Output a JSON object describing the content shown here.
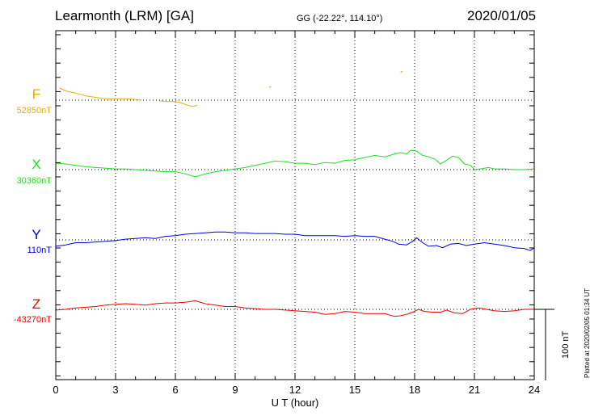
{
  "header": {
    "station": "Learmonth (LRM)  [GA]",
    "coords": "GG (-22.22°, 114.10°)",
    "date": "2020/01/05"
  },
  "footer": {
    "plotted": "Plotted at 2020/02/05 01:34 UT",
    "scale_label": "100 nT"
  },
  "colors": {
    "F": "#f2a900",
    "X": "#22dd22",
    "Y": "#0000dd",
    "Z": "#ee0000"
  },
  "chart_data": {
    "type": "line",
    "xlabel": "U T (hour)",
    "xlim": [
      0,
      24
    ],
    "xticks": [
      0,
      3,
      6,
      9,
      12,
      15,
      18,
      21,
      24
    ],
    "grid": true,
    "scale_bar_nT": 100,
    "series": [
      {
        "name": "F",
        "baseline_label": "52850nT",
        "baseline": 52850,
        "segments": [
          [
            [
              0.2,
              52867
            ],
            [
              0.5,
              52863
            ],
            [
              1.0,
              52860
            ],
            [
              1.5,
              52856
            ],
            [
              2.0,
              52854
            ],
            [
              2.5,
              52852
            ],
            [
              3.0,
              52852
            ],
            [
              3.5,
              52852
            ],
            [
              4.0,
              52851
            ],
            [
              4.3,
              52850
            ]
          ],
          [
            [
              5.2,
              52849
            ],
            [
              5.6,
              52848
            ],
            [
              6.0,
              52848
            ],
            [
              6.3,
              52846
            ],
            [
              6.6,
              52843
            ],
            [
              6.9,
              52841
            ],
            [
              7.1,
              52843
            ]
          ],
          [
            [
              10.7,
              52868
            ],
            [
              10.8,
              52869
            ]
          ],
          [
            [
              17.3,
              52889
            ],
            [
              17.4,
              52891
            ]
          ]
        ]
      },
      {
        "name": "X",
        "baseline_label": "30360nT",
        "baseline": 30360,
        "values": [
          [
            0,
            30369
          ],
          [
            0.5,
            30368
          ],
          [
            1,
            30366
          ],
          [
            1.5,
            30364
          ],
          [
            2,
            30363
          ],
          [
            2.5,
            30362
          ],
          [
            3,
            30361
          ],
          [
            3.5,
            30361
          ],
          [
            4,
            30360
          ],
          [
            4.5,
            30359
          ],
          [
            5,
            30358
          ],
          [
            5.5,
            30357
          ],
          [
            6,
            30357
          ],
          [
            6.5,
            30354
          ],
          [
            7,
            30350
          ],
          [
            7.5,
            30354
          ],
          [
            8,
            30357
          ],
          [
            8.5,
            30359
          ],
          [
            9,
            30361
          ],
          [
            9.5,
            30363
          ],
          [
            10,
            30366
          ],
          [
            10.5,
            30369
          ],
          [
            11,
            30372
          ],
          [
            11.5,
            30371
          ],
          [
            12,
            30369
          ],
          [
            12.5,
            30369
          ],
          [
            13,
            30367
          ],
          [
            13.5,
            30370
          ],
          [
            14,
            30369
          ],
          [
            14.5,
            30373
          ],
          [
            15,
            30374
          ],
          [
            15.5,
            30377
          ],
          [
            16,
            30380
          ],
          [
            16.5,
            30378
          ],
          [
            17,
            30382
          ],
          [
            17.3,
            30384
          ],
          [
            17.6,
            30382
          ],
          [
            17.8,
            30387
          ],
          [
            18.1,
            30386
          ],
          [
            18.4,
            30380
          ],
          [
            18.7,
            30378
          ],
          [
            19,
            30375
          ],
          [
            19.3,
            30368
          ],
          [
            19.6,
            30373
          ],
          [
            19.9,
            30379
          ],
          [
            20.2,
            30377
          ],
          [
            20.5,
            30368
          ],
          [
            20.8,
            30366
          ],
          [
            21,
            30360
          ],
          [
            21.3,
            30361
          ],
          [
            21.7,
            30363
          ],
          [
            22,
            30361
          ],
          [
            22.5,
            30361
          ],
          [
            23,
            30360
          ],
          [
            23.5,
            30360
          ],
          [
            24,
            30361
          ]
        ]
      },
      {
        "name": "Y",
        "baseline_label": "110nT",
        "baseline": 110,
        "values": [
          [
            0,
            101
          ],
          [
            0.5,
            103
          ],
          [
            1,
            106
          ],
          [
            1.5,
            106
          ],
          [
            2,
            107
          ],
          [
            2.5,
            108
          ],
          [
            3,
            109
          ],
          [
            3.5,
            111
          ],
          [
            4,
            112
          ],
          [
            4.5,
            113
          ],
          [
            5,
            112
          ],
          [
            5.5,
            115
          ],
          [
            6,
            116
          ],
          [
            6.5,
            118
          ],
          [
            7,
            119
          ],
          [
            7.5,
            120
          ],
          [
            8,
            121
          ],
          [
            8.5,
            121
          ],
          [
            9,
            120
          ],
          [
            9.5,
            120
          ],
          [
            10,
            119
          ],
          [
            10.5,
            119
          ],
          [
            11,
            119
          ],
          [
            11.5,
            118
          ],
          [
            12,
            118
          ],
          [
            12.5,
            116
          ],
          [
            13,
            116
          ],
          [
            13.5,
            116
          ],
          [
            14,
            116
          ],
          [
            14.5,
            115
          ],
          [
            15,
            116
          ],
          [
            15.5,
            115
          ],
          [
            16,
            115
          ],
          [
            16.5,
            111
          ],
          [
            16.9,
            108
          ],
          [
            17.2,
            104
          ],
          [
            17.6,
            103
          ],
          [
            17.9,
            108
          ],
          [
            18.1,
            113
          ],
          [
            18.4,
            106
          ],
          [
            18.7,
            101
          ],
          [
            19.1,
            102
          ],
          [
            19.4,
            99
          ],
          [
            19.8,
            104
          ],
          [
            20.2,
            105
          ],
          [
            20.6,
            102
          ],
          [
            21,
            104
          ],
          [
            21.5,
            106
          ],
          [
            22,
            104
          ],
          [
            22.5,
            102
          ],
          [
            23,
            99
          ],
          [
            23.5,
            98
          ],
          [
            23.8,
            95
          ],
          [
            24,
            99
          ]
        ]
      },
      {
        "name": "Z",
        "baseline_label": "-43270nT",
        "baseline": -43270,
        "values": [
          [
            0,
            -43271
          ],
          [
            0.5,
            -43270
          ],
          [
            1,
            -43268
          ],
          [
            1.5,
            -43267
          ],
          [
            2,
            -43266
          ],
          [
            2.5,
            -43264
          ],
          [
            3,
            -43263
          ],
          [
            3.5,
            -43262
          ],
          [
            4,
            -43263
          ],
          [
            4.5,
            -43264
          ],
          [
            5,
            -43262
          ],
          [
            5.5,
            -43261
          ],
          [
            6,
            -43261
          ],
          [
            6.5,
            -43260
          ],
          [
            7,
            -43258
          ],
          [
            7.5,
            -43262
          ],
          [
            8,
            -43264
          ],
          [
            8.5,
            -43266
          ],
          [
            9,
            -43266
          ],
          [
            9.5,
            -43268
          ],
          [
            10,
            -43269
          ],
          [
            10.5,
            -43270
          ],
          [
            11,
            -43270
          ],
          [
            11.5,
            -43271
          ],
          [
            12,
            -43272
          ],
          [
            12.5,
            -43273
          ],
          [
            13,
            -43274
          ],
          [
            13.5,
            -43277
          ],
          [
            14,
            -43276
          ],
          [
            14.5,
            -43273
          ],
          [
            15,
            -43274
          ],
          [
            15.5,
            -43276
          ],
          [
            16,
            -43276
          ],
          [
            16.5,
            -43276
          ],
          [
            17,
            -43280
          ],
          [
            17.3,
            -43279
          ],
          [
            17.6,
            -43277
          ],
          [
            17.9,
            -43274
          ],
          [
            18.2,
            -43270
          ],
          [
            18.5,
            -43273
          ],
          [
            18.9,
            -43274
          ],
          [
            19.3,
            -43274
          ],
          [
            19.6,
            -43271
          ],
          [
            20,
            -43275
          ],
          [
            20.4,
            -43276
          ],
          [
            20.8,
            -43270
          ],
          [
            21.2,
            -43268
          ],
          [
            21.6,
            -43270
          ],
          [
            22,
            -43272
          ],
          [
            22.5,
            -43273
          ],
          [
            23,
            -43272
          ],
          [
            23.5,
            -43270
          ],
          [
            24,
            -43270
          ]
        ]
      }
    ]
  }
}
